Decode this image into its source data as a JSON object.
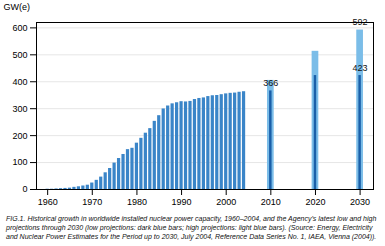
{
  "chart_data": {
    "type": "bar",
    "ylabel": "GW(e)",
    "caption": "FIG.1. Historical growth in worldwide installed nuclear power capacity, 1960–2004, and the Agency’s latest low and high\nprojections through 2030 (low projections: dark blue bars; high projections: light blue bars). (Source: Energy, Electricity\nand Nuclear Power Estimates for the Period up to 2030, July 2004, Reference Data Series No. 1, IAEA, Vienna (2004)).",
    "series": [
      {
        "color": "#3a85c8",
        "x": [
          1960,
          1961,
          1962,
          1963,
          1964,
          1965,
          1966,
          1967,
          1968,
          1969,
          1970,
          1971,
          1972,
          1973,
          1974,
          1975,
          1976,
          1977,
          1978,
          1979,
          1980,
          1981,
          1982,
          1983,
          1984,
          1985,
          1986,
          1987,
          1988,
          1989,
          1990,
          1991,
          1992,
          1993,
          1994,
          1995,
          1996,
          1997,
          1998,
          1999,
          2000,
          2001,
          2002,
          2003,
          2004
        ],
        "values": [
          1,
          1,
          2,
          3,
          4,
          5,
          8,
          10,
          13,
          16,
          24,
          34,
          46,
          62,
          78,
          98,
          115,
          130,
          148,
          153,
          172,
          190,
          209,
          226,
          253,
          274,
          299,
          310,
          318,
          322,
          326,
          325,
          327,
          334,
          338,
          340,
          345,
          348,
          349,
          352,
          355,
          357,
          358,
          361,
          363
        ]
      },
      {
        "color": "#7bbde8",
        "x": [
          2010,
          2020,
          2030
        ],
        "values": [
          405,
          513,
          592
        ]
      },
      {
        "color": "#1a5fa8",
        "x": [
          2010,
          2020,
          2030
        ],
        "values": [
          366,
          423,
          423
        ]
      }
    ],
    "annotations": [
      {
        "x": 2010,
        "y": 366,
        "text": "366"
      },
      {
        "x": 2030,
        "y": 423,
        "text": "423"
      },
      {
        "x": 2030,
        "y": 592,
        "text": "592"
      }
    ],
    "xlim": [
      1957.5,
      2033
    ],
    "xticks": [
      1960,
      1970,
      1980,
      1990,
      2000,
      2010,
      2020,
      2030
    ],
    "ylim": [
      0,
      620
    ],
    "yticks": [
      0,
      100,
      200,
      300,
      400,
      500,
      600
    ],
    "grid": true
  }
}
